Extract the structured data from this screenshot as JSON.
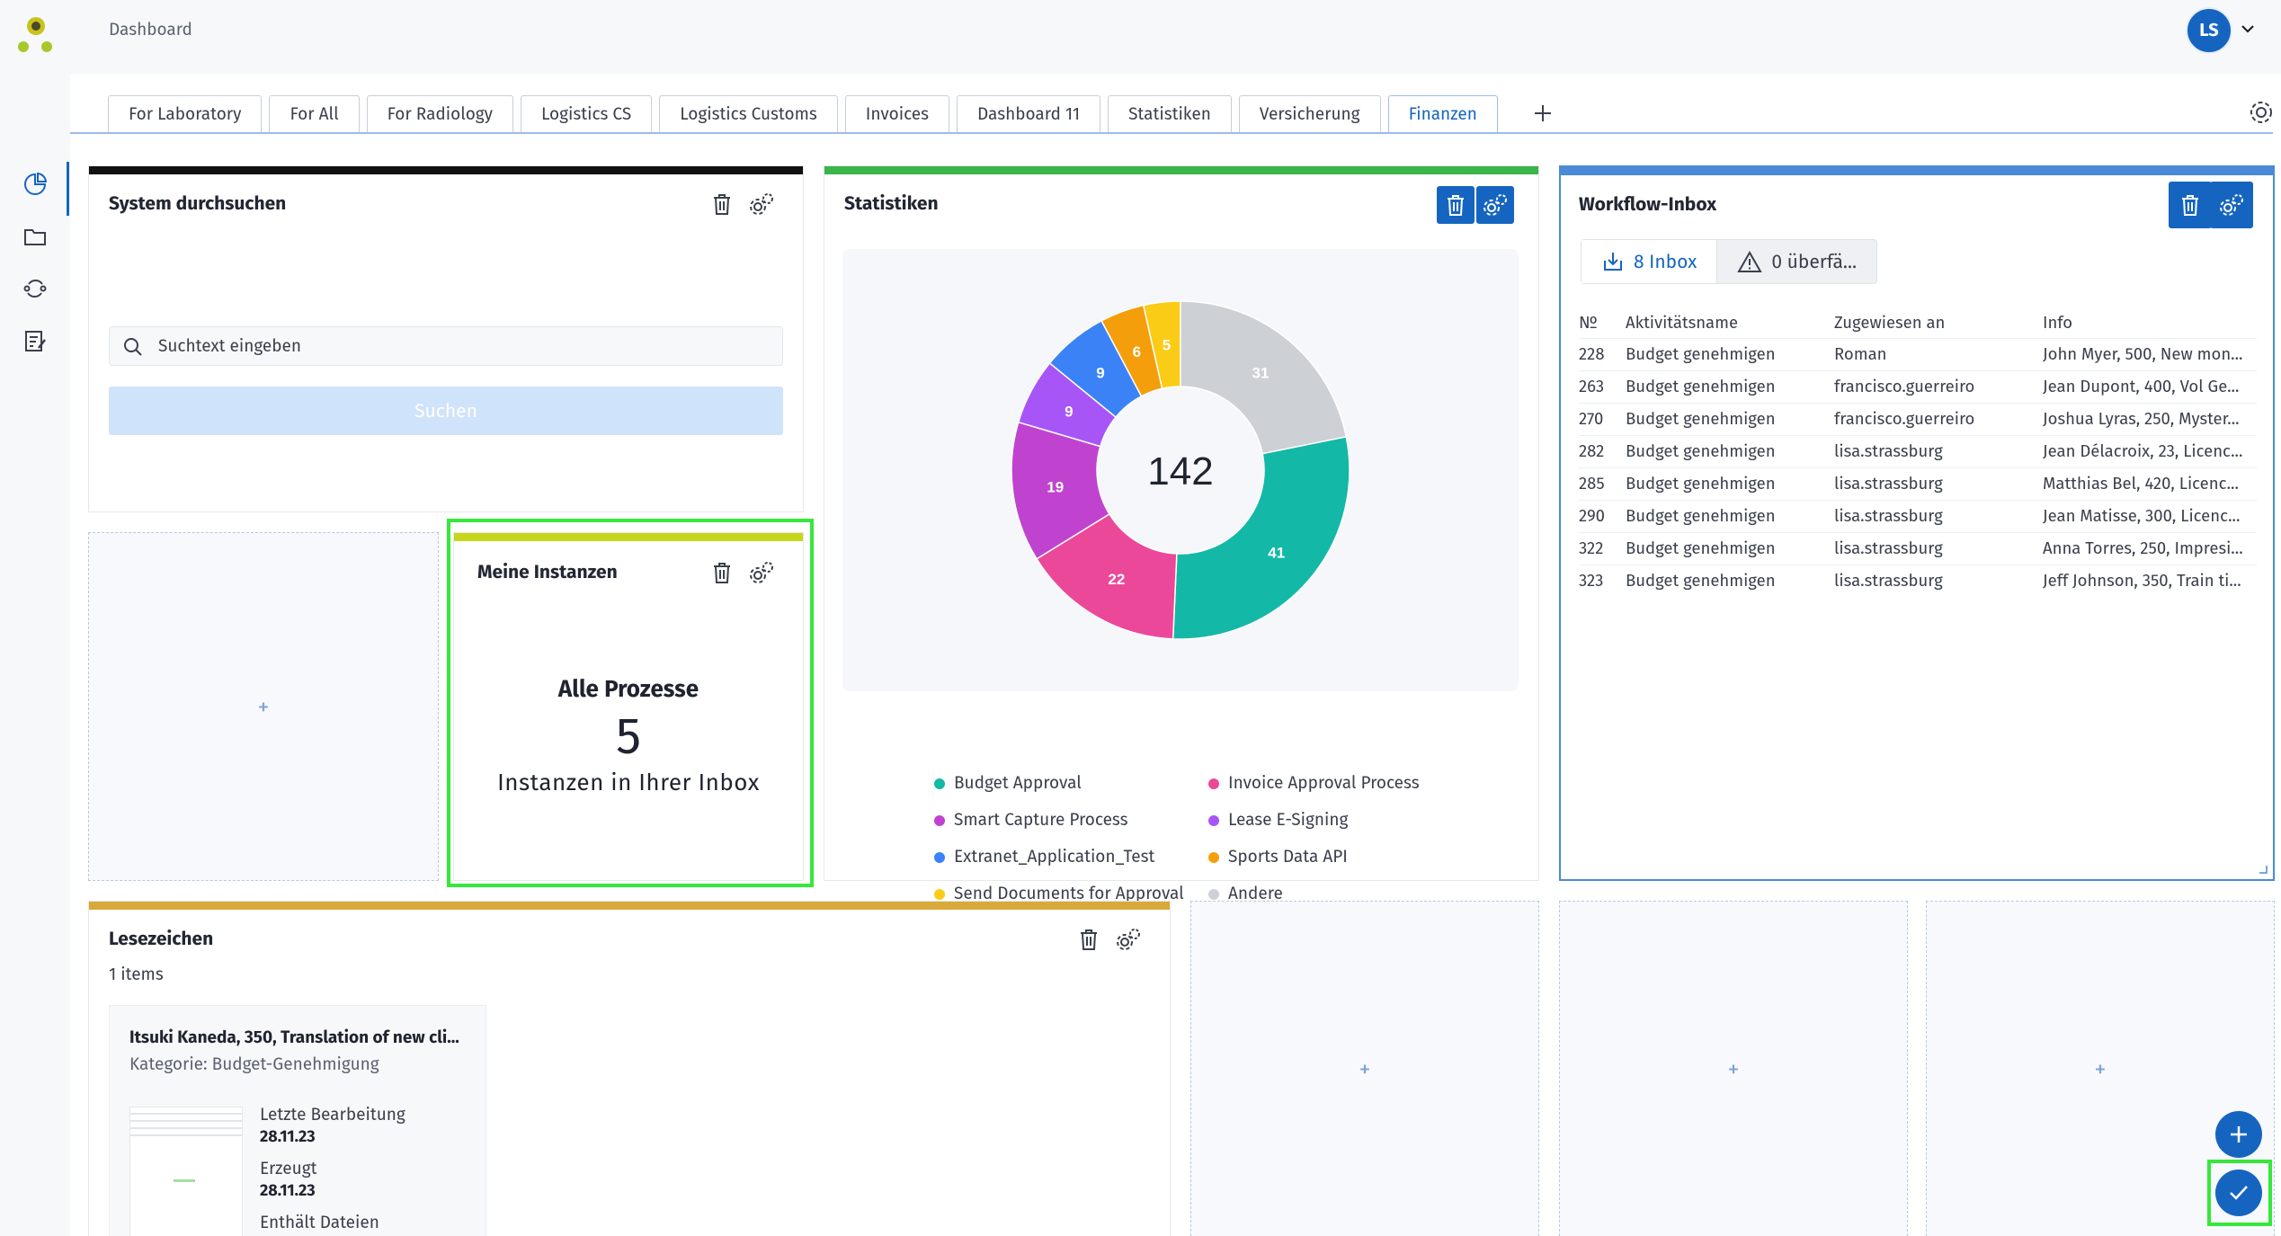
{
  "header": {
    "title": "Dashboard",
    "avatar_initials": "LS"
  },
  "tabs": [
    {
      "label": "For Laboratory"
    },
    {
      "label": "For All"
    },
    {
      "label": "For Radiology"
    },
    {
      "label": "Logistics CS"
    },
    {
      "label": "Logistics Customs"
    },
    {
      "label": "Invoices"
    },
    {
      "label": "Dashboard 11"
    },
    {
      "label": "Statistiken"
    },
    {
      "label": "Versicherung"
    },
    {
      "label": "Finanzen",
      "active": true
    }
  ],
  "search_widget": {
    "title": "System durchsuchen",
    "placeholder": "Suchtext eingeben",
    "button_label": "Suchen"
  },
  "instances_widget": {
    "title": "Meine Instanzen",
    "heading": "Alle Prozesse",
    "count": "5",
    "subtitle": "Instanzen in Ihrer Inbox"
  },
  "stats_widget": {
    "title": "Statistiken",
    "total": "142",
    "legend": [
      {
        "label": "Budget Approval",
        "color": "#14b8a6"
      },
      {
        "label": "Invoice Approval Process",
        "color": "#ec4899"
      },
      {
        "label": "Smart Capture Process",
        "color": "#c043cf"
      },
      {
        "label": "Lease E-Signing",
        "color": "#a855f7"
      },
      {
        "label": "Extranet_Application_Test",
        "color": "#3b82f6"
      },
      {
        "label": "Sports Data API",
        "color": "#f59e0b"
      },
      {
        "label": "Send Documents for Approval",
        "color": "#facc15"
      },
      {
        "label": "Andere",
        "color": "#cdd0d5"
      }
    ]
  },
  "chart_data": {
    "type": "pie",
    "categories": [
      "Budget Approval",
      "Invoice Approval Process",
      "Smart Capture Process",
      "Lease E-Signing",
      "Extranet_Application_Test",
      "Sports Data API",
      "Send Documents for Approval",
      "Andere"
    ],
    "values": [
      41,
      22,
      19,
      9,
      9,
      6,
      5,
      31
    ],
    "colors": [
      "#14b8a6",
      "#ec4899",
      "#c043cf",
      "#a855f7",
      "#3b82f6",
      "#f59e0b",
      "#facc15",
      "#cdd0d5"
    ],
    "center_label": "142",
    "legend_position": "bottom"
  },
  "inbox_widget": {
    "title": "Workflow-Inbox",
    "inbox_tab": "8 Inbox",
    "overdue_tab": "0 überfä...",
    "columns": [
      "№",
      "Aktivitätsname",
      "Zugewiesen an",
      "Info"
    ],
    "rows": [
      [
        "228",
        "Budget genehmigen",
        "Roman",
        "John Myer, 500, New mon..."
      ],
      [
        "263",
        "Budget genehmigen",
        "francisco.guerreiro",
        "Jean Dupont, 400, Vol Ge..."
      ],
      [
        "270",
        "Budget genehmigen",
        "francisco.guerreiro",
        "Joshua Lyras, 250, Myster..."
      ],
      [
        "282",
        "Budget genehmigen",
        "lisa.strassburg",
        "Jean Délacroix, 23, Licenc..."
      ],
      [
        "285",
        "Budget genehmigen",
        "lisa.strassburg",
        "Matthias Bel, 420, Licenc..."
      ],
      [
        "290",
        "Budget genehmigen",
        "lisa.strassburg",
        "Jean Matisse, 300, Licenc..."
      ],
      [
        "322",
        "Budget genehmigen",
        "lisa.strassburg",
        "Anna Torres, 250, Impresi..."
      ],
      [
        "323",
        "Budget genehmigen",
        "lisa.strassburg",
        "Jeff Johnson, 350, Train ti..."
      ]
    ]
  },
  "bookmarks_widget": {
    "title": "Lesezeichen",
    "count": "1 items",
    "card": {
      "title": "Itsuki Kaneda, 350, Translation of new cli...",
      "category": "Kategorie: Budget-Genehmigung",
      "last_edit_label": "Letzte Bearbeitung",
      "last_edit_value": "28.11.23",
      "created_label": "Erzeugt",
      "created_value": "28.11.23",
      "files_label": "Enthält Dateien"
    }
  },
  "colors": {
    "primary": "#1565c0",
    "search_top": "#111111",
    "stats_top": "#3bb54a",
    "inbox_top": "#4a8ad6",
    "instances_top": "#c7d61a",
    "bookmarks_top": "#d9a93c",
    "highlight": "#35e83a"
  }
}
